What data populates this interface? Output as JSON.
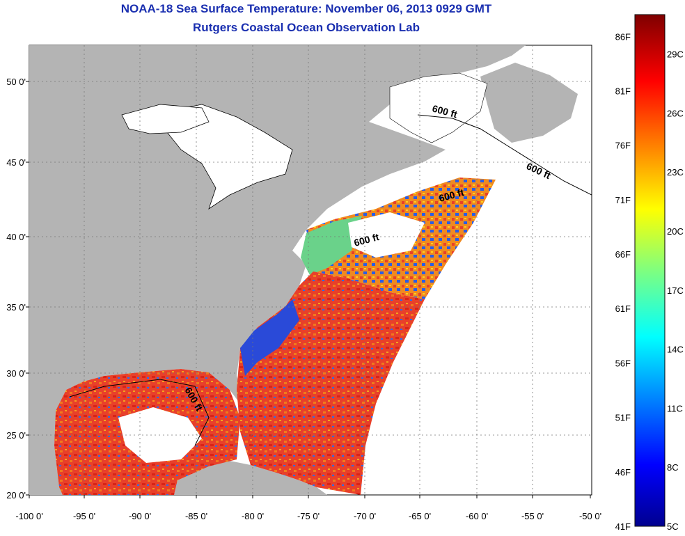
{
  "title": "NOAA-18 Sea Surface Temperature:  November 06, 2013 0929 GMT",
  "subtitle": "Rutgers Coastal Ocean Observation Lab",
  "x_ticks": [
    "-100 0'",
    "-95 0'",
    "-90 0'",
    "-85 0'",
    "-80 0'",
    "-75 0'",
    "-70 0'",
    "-65 0'",
    "-60 0'",
    "-55 0'",
    "-50 0'"
  ],
  "y_ticks": [
    "50 0'",
    "45 0'",
    "40 0'",
    "35 0'",
    "30 0'",
    "25 0'",
    "20 0'"
  ],
  "isobath_label": "600 ft",
  "colorbar": {
    "fahrenheit": [
      "86F",
      "81F",
      "76F",
      "71F",
      "66F",
      "61F",
      "56F",
      "51F",
      "46F",
      "41F"
    ],
    "celsius": [
      "29C",
      "26C",
      "23C",
      "20C",
      "17C",
      "14C",
      "11C",
      "8C",
      "5C"
    ],
    "range_f": [
      41,
      88
    ],
    "range_c": [
      5,
      31
    ]
  },
  "colors": {
    "title": "#1a2fb0",
    "land": "#b4b4b4",
    "no_data": "#ffffff",
    "warm": "#e8341c",
    "cold": "#1a3cc8"
  }
}
